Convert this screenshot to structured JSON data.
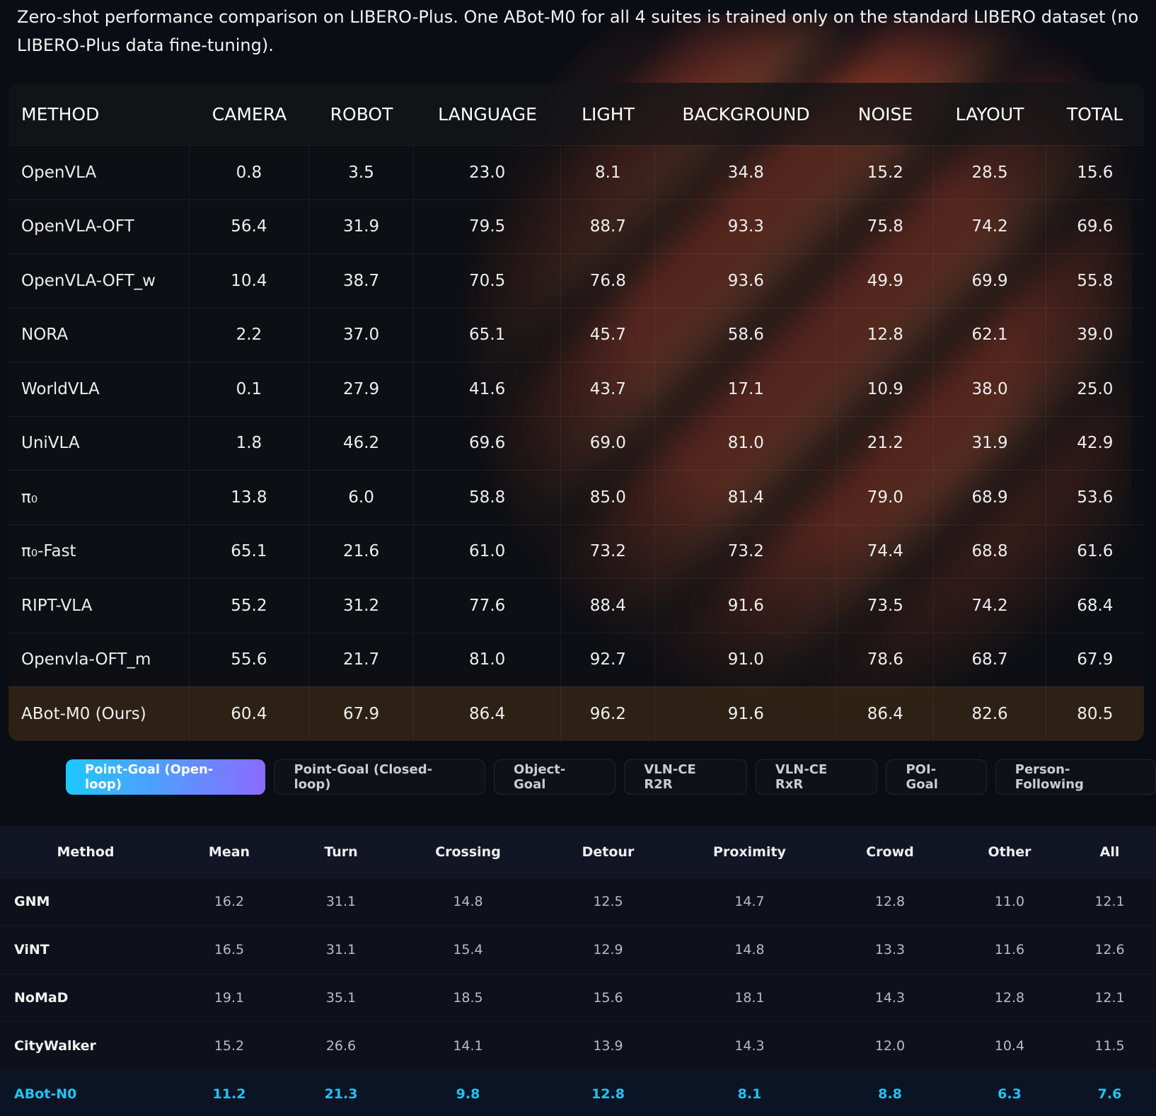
{
  "caption": "Zero-shot performance comparison on LIBERO-Plus. One ABot-M0 for all 4 suites is trained only on the standard LIBERO dataset (no LIBERO-Plus data fine-tuning).",
  "libero_table": {
    "columns": [
      "METHOD",
      "CAMERA",
      "ROBOT",
      "LANGUAGE",
      "LIGHT",
      "BACKGROUND",
      "NOISE",
      "LAYOUT",
      "TOTAL"
    ],
    "rows": [
      [
        "OpenVLA",
        "0.8",
        "3.5",
        "23.0",
        "8.1",
        "34.8",
        "15.2",
        "28.5",
        "15.6"
      ],
      [
        "OpenVLA-OFT",
        "56.4",
        "31.9",
        "79.5",
        "88.7",
        "93.3",
        "75.8",
        "74.2",
        "69.6"
      ],
      [
        "OpenVLA-OFT_w",
        "10.4",
        "38.7",
        "70.5",
        "76.8",
        "93.6",
        "49.9",
        "69.9",
        "55.8"
      ],
      [
        "NORA",
        "2.2",
        "37.0",
        "65.1",
        "45.7",
        "58.6",
        "12.8",
        "62.1",
        "39.0"
      ],
      [
        "WorldVLA",
        "0.1",
        "27.9",
        "41.6",
        "43.7",
        "17.1",
        "10.9",
        "38.0",
        "25.0"
      ],
      [
        "UniVLA",
        "1.8",
        "46.2",
        "69.6",
        "69.0",
        "81.0",
        "21.2",
        "31.9",
        "42.9"
      ],
      [
        "π₀",
        "13.8",
        "6.0",
        "58.8",
        "85.0",
        "81.4",
        "79.0",
        "68.9",
        "53.6"
      ],
      [
        "π₀-Fast",
        "65.1",
        "21.6",
        "61.0",
        "73.2",
        "73.2",
        "74.4",
        "68.8",
        "61.6"
      ],
      [
        "RIPT-VLA",
        "55.2",
        "31.2",
        "77.6",
        "88.4",
        "91.6",
        "73.5",
        "74.2",
        "68.4"
      ],
      [
        "Openvla-OFT_m",
        "55.6",
        "21.7",
        "81.0",
        "92.7",
        "91.0",
        "78.6",
        "68.7",
        "67.9"
      ],
      [
        "ABot-M0 (Ours)",
        "60.4",
        "67.9",
        "86.4",
        "96.2",
        "91.6",
        "86.4",
        "82.6",
        "80.5"
      ]
    ]
  },
  "tabs": [
    "Point-Goal (Open-loop)",
    "Point-Goal (Closed-loop)",
    "Object-Goal",
    "VLN-CE R2R",
    "VLN-CE RxR",
    "POI-Goal",
    "Person-Following"
  ],
  "nav_table": {
    "columns": [
      "Method",
      "Mean",
      "Turn",
      "Crossing",
      "Detour",
      "Proximity",
      "Crowd",
      "Other",
      "All"
    ],
    "rows": [
      [
        "GNM",
        "16.2",
        "31.1",
        "14.8",
        "12.5",
        "14.7",
        "12.8",
        "11.0",
        "12.1"
      ],
      [
        "ViNT",
        "16.5",
        "31.1",
        "15.4",
        "12.9",
        "14.8",
        "13.3",
        "11.6",
        "12.6"
      ],
      [
        "NoMaD",
        "19.1",
        "35.1",
        "18.5",
        "15.6",
        "18.1",
        "14.3",
        "12.8",
        "12.1"
      ],
      [
        "CityWalker",
        "15.2",
        "26.6",
        "14.1",
        "13.9",
        "14.3",
        "12.0",
        "10.4",
        "11.5"
      ],
      [
        "ABot-N0",
        "11.2",
        "21.3",
        "9.8",
        "12.8",
        "8.1",
        "8.8",
        "6.3",
        "7.6"
      ]
    ]
  }
}
